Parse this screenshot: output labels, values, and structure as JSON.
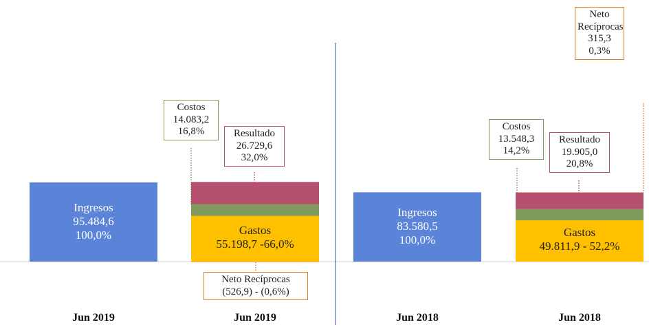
{
  "chart_data": [
    {
      "type": "stacked_bar",
      "categories": [
        "Jun 2019",
        "Jun 2019"
      ],
      "series": [
        {
          "name": "Ingresos",
          "color": "#5b84d9",
          "values": [
            95484.6,
            null
          ],
          "value_labels": [
            "95.484,6",
            null
          ],
          "shares": [
            100.0,
            null
          ],
          "share_labels": [
            "100,0%",
            null
          ]
        },
        {
          "name": "Gastos",
          "color": "#ffc000",
          "values": [
            null,
            55198.7
          ],
          "value_labels": [
            null,
            "55.198,7"
          ],
          "shares": [
            null,
            66.0
          ],
          "share_labels": [
            null,
            "-66,0%"
          ]
        },
        {
          "name": "Costos",
          "color": "#7f9a5c",
          "values": [
            null,
            14083.2
          ],
          "value_labels": [
            null,
            "14.083,2"
          ],
          "shares": [
            null,
            16.8
          ],
          "share_labels": [
            null,
            "16,8%"
          ]
        },
        {
          "name": "Resultado",
          "color": "#b5506f",
          "values": [
            null,
            26729.6
          ],
          "value_labels": [
            null,
            "26.729,6"
          ],
          "shares": [
            null,
            32.0
          ],
          "share_labels": [
            null,
            "32,0%"
          ]
        },
        {
          "name": "Neto Recíprocas",
          "color": "#e0822a",
          "values": [
            null,
            -526.9
          ],
          "value_labels": [
            null,
            "(526,9)"
          ],
          "shares": [
            null,
            -0.6
          ],
          "share_labels": [
            null,
            "- (0,6%)"
          ]
        }
      ]
    },
    {
      "type": "stacked_bar",
      "categories": [
        "Jun 2018",
        "Jun 2018"
      ],
      "series": [
        {
          "name": "Ingresos",
          "color": "#5b84d9",
          "values": [
            83580.5,
            null
          ],
          "value_labels": [
            "83.580,5",
            null
          ],
          "shares": [
            100.0,
            null
          ],
          "share_labels": [
            "100,0%",
            null
          ]
        },
        {
          "name": "Gastos",
          "color": "#ffc000",
          "values": [
            null,
            49811.9
          ],
          "value_labels": [
            null,
            "49.811,9"
          ],
          "shares": [
            null,
            52.2
          ],
          "share_labels": [
            null,
            "- 52,2%"
          ]
        },
        {
          "name": "Costos",
          "color": "#7f9a5c",
          "values": [
            null,
            13548.3
          ],
          "value_labels": [
            null,
            "13.548,3"
          ],
          "shares": [
            null,
            14.2
          ],
          "share_labels": [
            null,
            "14,2%"
          ]
        },
        {
          "name": "Resultado",
          "color": "#b5506f",
          "values": [
            null,
            19905.0
          ],
          "value_labels": [
            null,
            "19.905,0"
          ],
          "shares": [
            null,
            20.8
          ],
          "share_labels": [
            null,
            "20,8%"
          ]
        },
        {
          "name": "Neto Recíprocas",
          "color": "#e0822a",
          "values": [
            null,
            315.3
          ],
          "value_labels": [
            null,
            "315,3"
          ],
          "shares": [
            null,
            0.3
          ],
          "share_labels": [
            null,
            "0,3%"
          ]
        }
      ]
    }
  ]
}
